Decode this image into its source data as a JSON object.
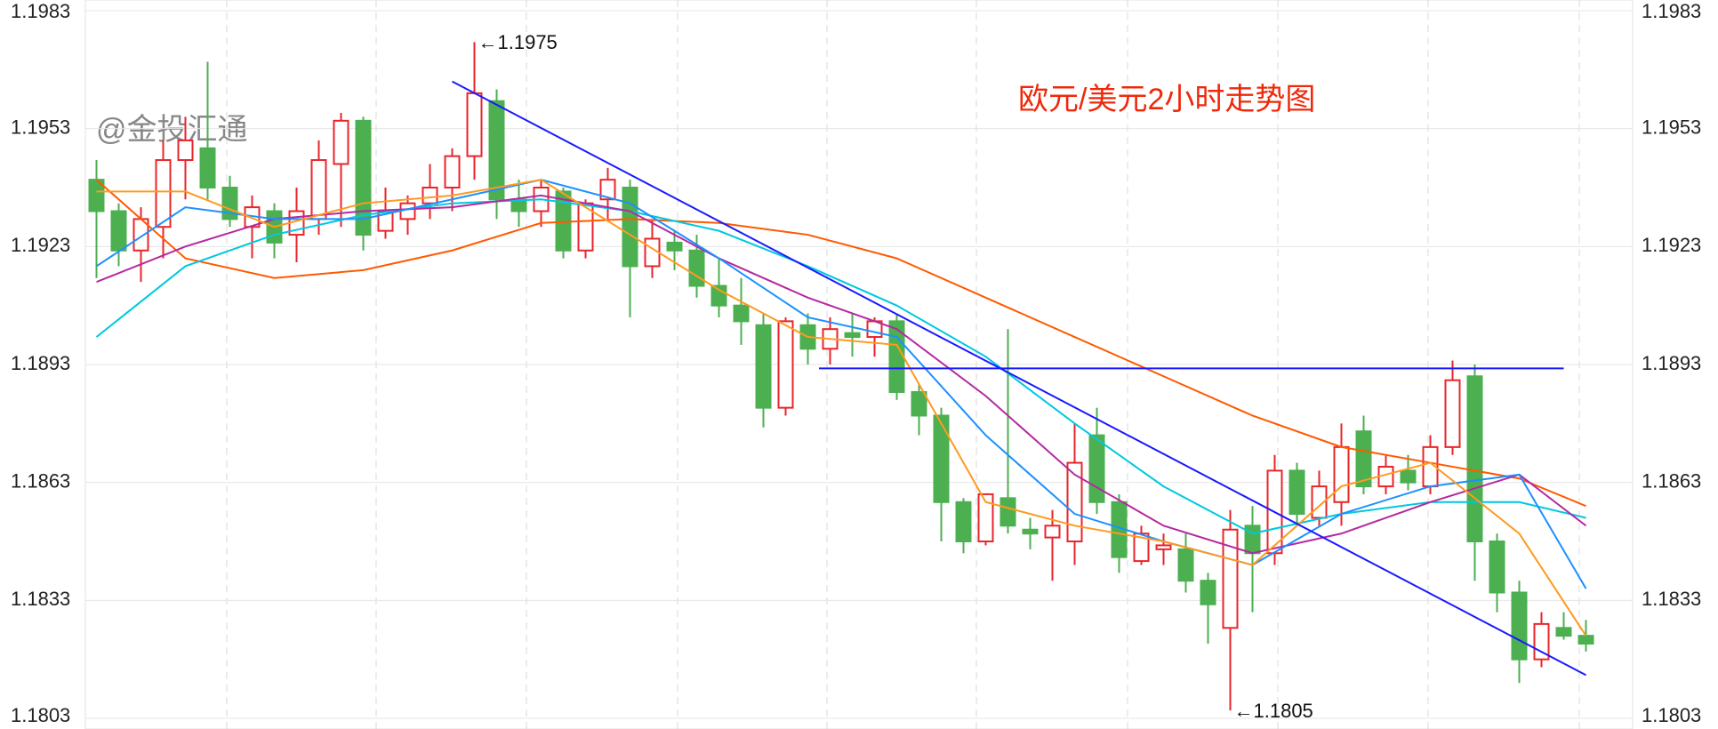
{
  "chart_data": {
    "type": "candlestick",
    "title": "欧元/美元2小时走势图",
    "watermark": "@金投汇通",
    "up_color": "#e8252b",
    "down_color": "#4caf50",
    "ylim": [
      1.1803,
      1.1983
    ],
    "yticks": [
      1.1803,
      1.1833,
      1.1863,
      1.1893,
      1.1923,
      1.1953,
      1.1983
    ],
    "grid": true,
    "ohlc": [
      [
        1.194,
        1.1945,
        1.1915,
        1.1932
      ],
      [
        1.1932,
        1.1934,
        1.1918,
        1.1922
      ],
      [
        1.1922,
        1.1933,
        1.1914,
        1.193
      ],
      [
        1.1928,
        1.195,
        1.192,
        1.1945
      ],
      [
        1.1945,
        1.1956,
        1.1935,
        1.195
      ],
      [
        1.1948,
        1.197,
        1.1935,
        1.1938
      ],
      [
        1.1938,
        1.1941,
        1.1928,
        1.193
      ],
      [
        1.1928,
        1.1936,
        1.192,
        1.1933
      ],
      [
        1.1932,
        1.1934,
        1.192,
        1.1924
      ],
      [
        1.1926,
        1.1938,
        1.1919,
        1.1932
      ],
      [
        1.193,
        1.195,
        1.1926,
        1.1945
      ],
      [
        1.1944,
        1.1957,
        1.1928,
        1.1955
      ],
      [
        1.1955,
        1.1956,
        1.1922,
        1.1926
      ],
      [
        1.1927,
        1.1938,
        1.1925,
        1.1932
      ],
      [
        1.193,
        1.1936,
        1.1926,
        1.1934
      ],
      [
        1.1934,
        1.1944,
        1.193,
        1.1938
      ],
      [
        1.1938,
        1.1948,
        1.1932,
        1.1946
      ],
      [
        1.1946,
        1.1975,
        1.194,
        1.1962
      ],
      [
        1.196,
        1.1963,
        1.193,
        1.1935
      ],
      [
        1.1935,
        1.194,
        1.1928,
        1.1932
      ],
      [
        1.1932,
        1.194,
        1.1928,
        1.1938
      ],
      [
        1.1937,
        1.1938,
        1.192,
        1.1922
      ],
      [
        1.1922,
        1.1935,
        1.192,
        1.1934
      ],
      [
        1.1935,
        1.1943,
        1.193,
        1.194
      ],
      [
        1.1938,
        1.194,
        1.1905,
        1.1918
      ],
      [
        1.1918,
        1.193,
        1.1915,
        1.1925
      ],
      [
        1.1924,
        1.1927,
        1.1917,
        1.1922
      ],
      [
        1.1922,
        1.1926,
        1.191,
        1.1913
      ],
      [
        1.1913,
        1.192,
        1.1905,
        1.1908
      ],
      [
        1.1908,
        1.1915,
        1.1898,
        1.1904
      ],
      [
        1.1903,
        1.1906,
        1.1877,
        1.1882
      ],
      [
        1.1882,
        1.1905,
        1.188,
        1.1904
      ],
      [
        1.1903,
        1.1906,
        1.1893,
        1.1897
      ],
      [
        1.1897,
        1.1905,
        1.1893,
        1.1902
      ],
      [
        1.1901,
        1.1906,
        1.1895,
        1.19
      ],
      [
        1.19,
        1.1905,
        1.1895,
        1.1904
      ],
      [
        1.1904,
        1.1906,
        1.1884,
        1.1886
      ],
      [
        1.1886,
        1.1888,
        1.1875,
        1.188
      ],
      [
        1.188,
        1.1882,
        1.1848,
        1.1858
      ],
      [
        1.1858,
        1.1859,
        1.1845,
        1.1848
      ],
      [
        1.1848,
        1.186,
        1.1847,
        1.186
      ],
      [
        1.1859,
        1.1902,
        1.185,
        1.1852
      ],
      [
        1.1851,
        1.1854,
        1.1846,
        1.185
      ],
      [
        1.1849,
        1.1856,
        1.1838,
        1.1852
      ],
      [
        1.1848,
        1.1878,
        1.1842,
        1.1868
      ],
      [
        1.1875,
        1.1882,
        1.1855,
        1.1858
      ],
      [
        1.1858,
        1.186,
        1.184,
        1.1844
      ],
      [
        1.1843,
        1.1852,
        1.1842,
        1.185
      ],
      [
        1.1846,
        1.185,
        1.1842,
        1.1847
      ],
      [
        1.1846,
        1.185,
        1.1835,
        1.1838
      ],
      [
        1.1838,
        1.184,
        1.1822,
        1.1832
      ],
      [
        1.1826,
        1.1856,
        1.1805,
        1.1851
      ],
      [
        1.1852,
        1.1857,
        1.183,
        1.1845
      ],
      [
        1.1845,
        1.187,
        1.1842,
        1.1866
      ],
      [
        1.1866,
        1.1868,
        1.1852,
        1.1855
      ],
      [
        1.1854,
        1.1866,
        1.1852,
        1.1862
      ],
      [
        1.1858,
        1.1878,
        1.1852,
        1.1872
      ],
      [
        1.1876,
        1.188,
        1.186,
        1.1862
      ],
      [
        1.1862,
        1.187,
        1.186,
        1.1867
      ],
      [
        1.1866,
        1.187,
        1.1861,
        1.1863
      ],
      [
        1.1862,
        1.1875,
        1.186,
        1.1872
      ],
      [
        1.1872,
        1.1894,
        1.187,
        1.1889
      ],
      [
        1.189,
        1.1893,
        1.1838,
        1.1848
      ],
      [
        1.1848,
        1.185,
        1.183,
        1.1835
      ],
      [
        1.1835,
        1.1838,
        1.1812,
        1.1818
      ],
      [
        1.1818,
        1.183,
        1.1816,
        1.1827
      ],
      [
        1.1826,
        1.183,
        1.1823,
        1.1824
      ],
      [
        1.1824,
        1.1828,
        1.182,
        1.1822
      ]
    ],
    "series": [
      {
        "color": "#ff5a00",
        "x": [
          0,
          4,
          8,
          12,
          16,
          20,
          24,
          28,
          32,
          36,
          40,
          44,
          48,
          52,
          56,
          60,
          64,
          67
        ],
        "values": [
          1.194,
          1.192,
          1.1915,
          1.1917,
          1.1922,
          1.1929,
          1.193,
          1.1929,
          1.1926,
          1.192,
          1.191,
          1.19,
          1.189,
          1.188,
          1.1872,
          1.1868,
          1.1864,
          1.1857
        ]
      },
      {
        "color": "#00c8e0",
        "x": [
          0,
          4,
          8,
          12,
          16,
          20,
          24,
          28,
          32,
          36,
          40,
          44,
          48,
          52,
          56,
          60,
          64,
          67
        ],
        "values": [
          1.19,
          1.1918,
          1.1926,
          1.1931,
          1.1934,
          1.1935,
          1.1932,
          1.1927,
          1.1918,
          1.1908,
          1.1895,
          1.1878,
          1.1862,
          1.185,
          1.1855,
          1.1858,
          1.1858,
          1.1854
        ]
      },
      {
        "color": "#b5299f",
        "x": [
          0,
          4,
          8,
          12,
          16,
          20,
          24,
          28,
          32,
          36,
          40,
          44,
          48,
          52,
          56,
          60,
          64,
          67
        ],
        "values": [
          1.1914,
          1.1923,
          1.193,
          1.1932,
          1.1933,
          1.1936,
          1.1932,
          1.192,
          1.191,
          1.1902,
          1.1885,
          1.1865,
          1.1852,
          1.1845,
          1.185,
          1.1858,
          1.1865,
          1.1852
        ]
      },
      {
        "color": "#1e90ff",
        "x": [
          0,
          4,
          8,
          12,
          16,
          20,
          24,
          28,
          32,
          36,
          40,
          44,
          48,
          52,
          56,
          60,
          64,
          67
        ],
        "values": [
          1.1918,
          1.1933,
          1.193,
          1.193,
          1.1935,
          1.194,
          1.1934,
          1.192,
          1.1905,
          1.19,
          1.1875,
          1.1855,
          1.1848,
          1.1842,
          1.1855,
          1.1862,
          1.1865,
          1.1836
        ]
      },
      {
        "color": "#ff9a1f",
        "x": [
          0,
          4,
          8,
          12,
          16,
          20,
          24,
          28,
          32,
          36,
          40,
          44,
          48,
          52,
          56,
          60,
          64,
          67
        ],
        "values": [
          1.1937,
          1.1937,
          1.1928,
          1.1934,
          1.1936,
          1.194,
          1.1926,
          1.1912,
          1.19,
          1.1898,
          1.1858,
          1.1852,
          1.1848,
          1.1842,
          1.1862,
          1.1868,
          1.185,
          1.1824
        ]
      }
    ],
    "trendlines": [
      {
        "color": "#1a1aff",
        "x": [
          16,
          67
        ],
        "values": [
          1.1965,
          1.1814
        ]
      },
      {
        "color": "#1a1aff",
        "x": [
          32.5,
          66
        ],
        "values": [
          1.1892,
          1.1892
        ]
      }
    ],
    "annotations": [
      {
        "text": "←1.1975",
        "x": 17,
        "y": 1.1975
      },
      {
        "text": "←1.1805",
        "x": 51,
        "y": 1.1805
      }
    ]
  }
}
